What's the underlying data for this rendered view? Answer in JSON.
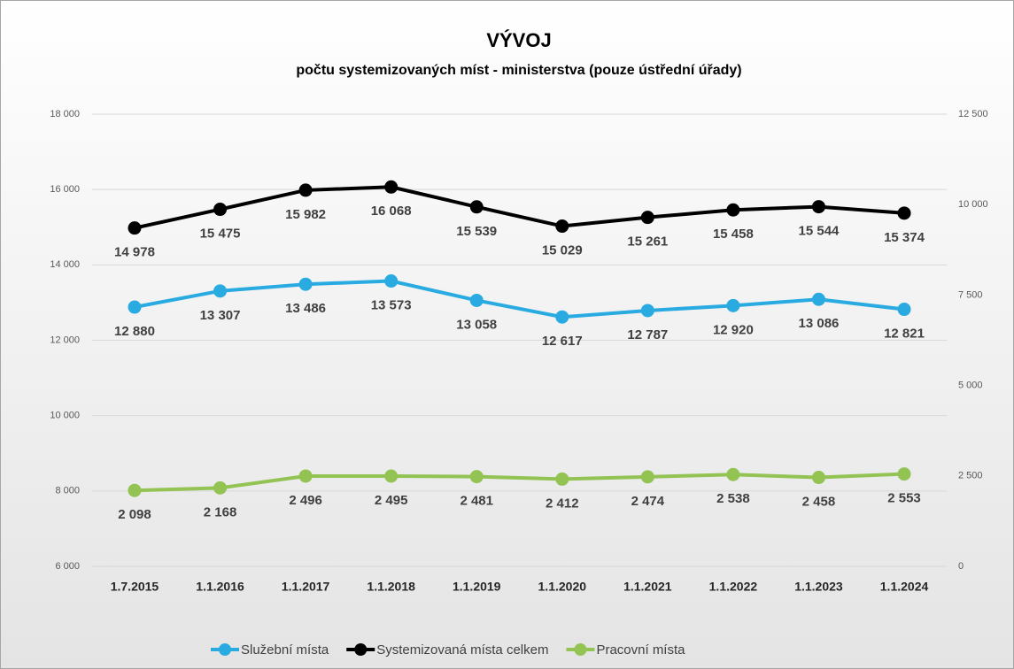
{
  "chart_data": {
    "type": "line",
    "title": "VÝVOJ",
    "subtitle": "počtu systemizovaných míst - ministerstva (pouze ústřední úřady)",
    "categories": [
      "1.7.2015",
      "1.1.2016",
      "1.1.2017",
      "1.1.2018",
      "1.1.2019",
      "1.1.2020",
      "1.1.2021",
      "1.1.2022",
      "1.1.2023",
      "1.1.2024"
    ],
    "series": [
      {
        "name": "Služební místa",
        "color": "#29abe2",
        "axis": "y",
        "values": [
          12880,
          13307,
          13486,
          13573,
          13058,
          12617,
          12787,
          12920,
          13086,
          12821
        ],
        "value_labels": [
          "12 880",
          "13 307",
          "13 486",
          "13 573",
          "13 058",
          "12 617",
          "12 787",
          "12 920",
          "13 086",
          "12 821"
        ]
      },
      {
        "name": "Systemizovaná místa celkem",
        "color": "#000000",
        "axis": "y",
        "values": [
          14978,
          15475,
          15982,
          16068,
          15539,
          15029,
          15261,
          15458,
          15544,
          15374
        ],
        "value_labels": [
          "14 978",
          "15 475",
          "15 982",
          "16 068",
          "15 539",
          "15 029",
          "15 261",
          "15 458",
          "15 544",
          "15 374"
        ]
      },
      {
        "name": "Pracovní místa",
        "color": "#92c353",
        "axis": "y2",
        "values": [
          2098,
          2168,
          2496,
          2495,
          2481,
          2412,
          2474,
          2538,
          2458,
          2553
        ],
        "value_labels": [
          "2 098",
          "2 168",
          "2 496",
          "2 495",
          "2 481",
          "2 412",
          "2 474",
          "2 538",
          "2 458",
          "2 553"
        ]
      }
    ],
    "ylim": [
      6000,
      18000
    ],
    "yticks": [
      {
        "value": 6000,
        "label": "6 000"
      },
      {
        "value": 8000,
        "label": "8 000"
      },
      {
        "value": 10000,
        "label": "10 000"
      },
      {
        "value": 12000,
        "label": "12 000"
      },
      {
        "value": 14000,
        "label": "14 000"
      },
      {
        "value": 16000,
        "label": "16 000"
      },
      {
        "value": 18000,
        "label": "18 000"
      }
    ],
    "y2lim": [
      0,
      12500
    ],
    "y2ticks": [
      0,
      {
        "value": 2500,
        "label": "2 500"
      },
      {
        "value": 5000,
        "label": "5 000"
      },
      {
        "value": 7500,
        "label": "7 500"
      },
      {
        "value": 10000,
        "label": "10 000"
      },
      {
        "value": 12500,
        "label": "12 500"
      }
    ],
    "grid": true,
    "legend": "bottom"
  }
}
